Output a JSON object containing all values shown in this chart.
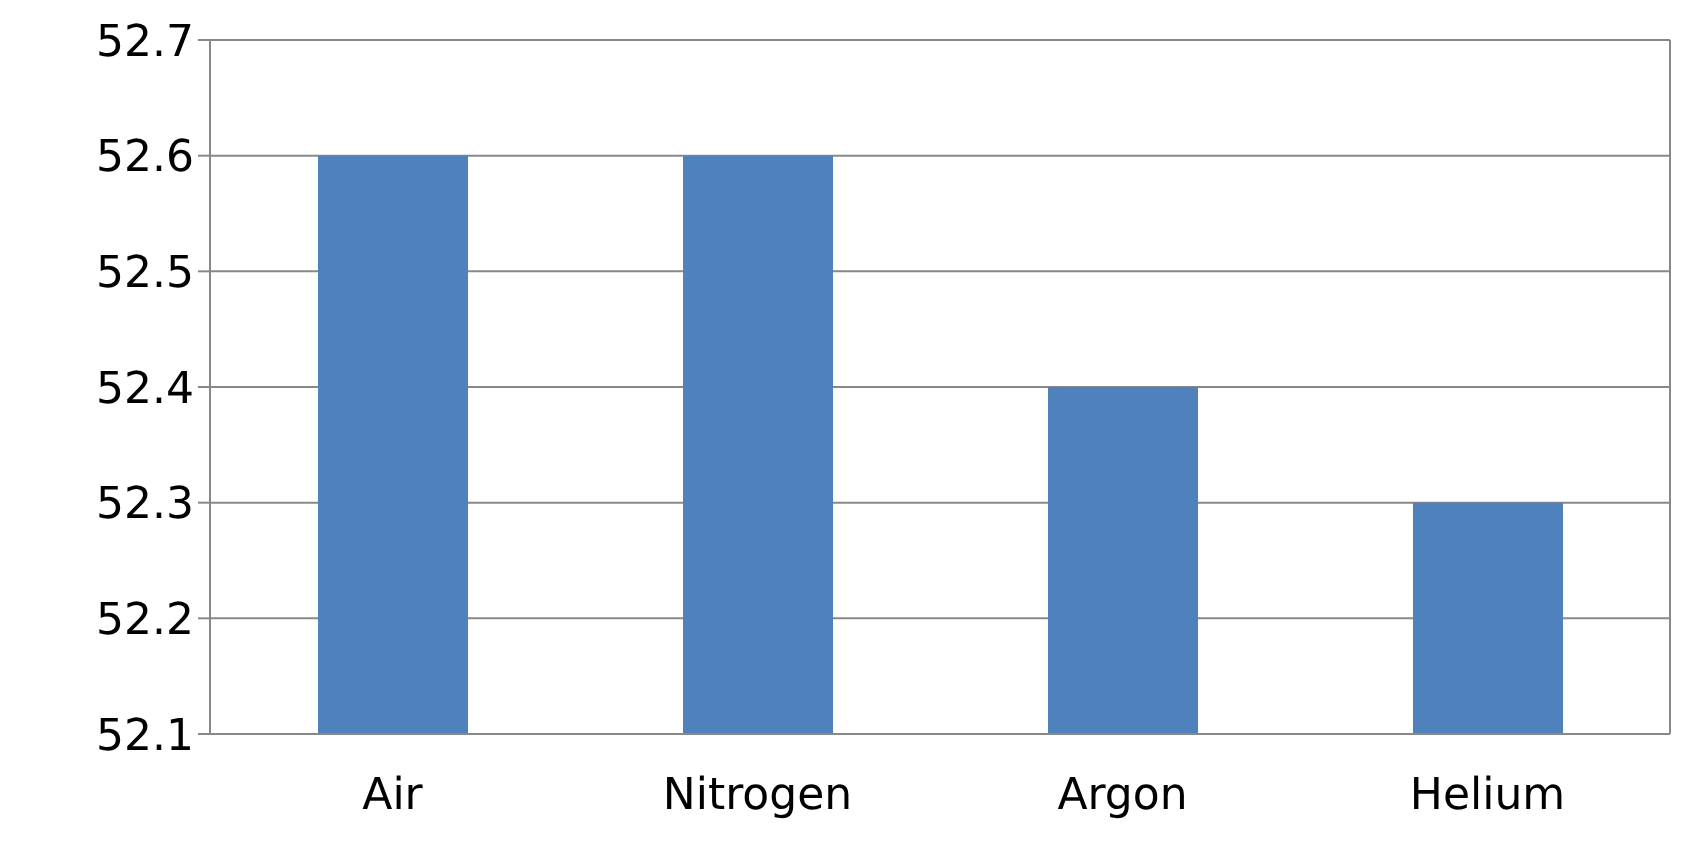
{
  "chart_data": {
    "type": "bar",
    "categories": [
      "Air",
      "Nitrogen",
      "Argon",
      "Helium"
    ],
    "values": [
      52.6,
      52.6,
      52.4,
      52.3
    ],
    "color": "#4f81bd",
    "ylim": [
      52.1,
      52.7
    ],
    "yticks": [
      52.1,
      52.2,
      52.3,
      52.4,
      52.5,
      52.6,
      52.7
    ],
    "grid": "y"
  }
}
